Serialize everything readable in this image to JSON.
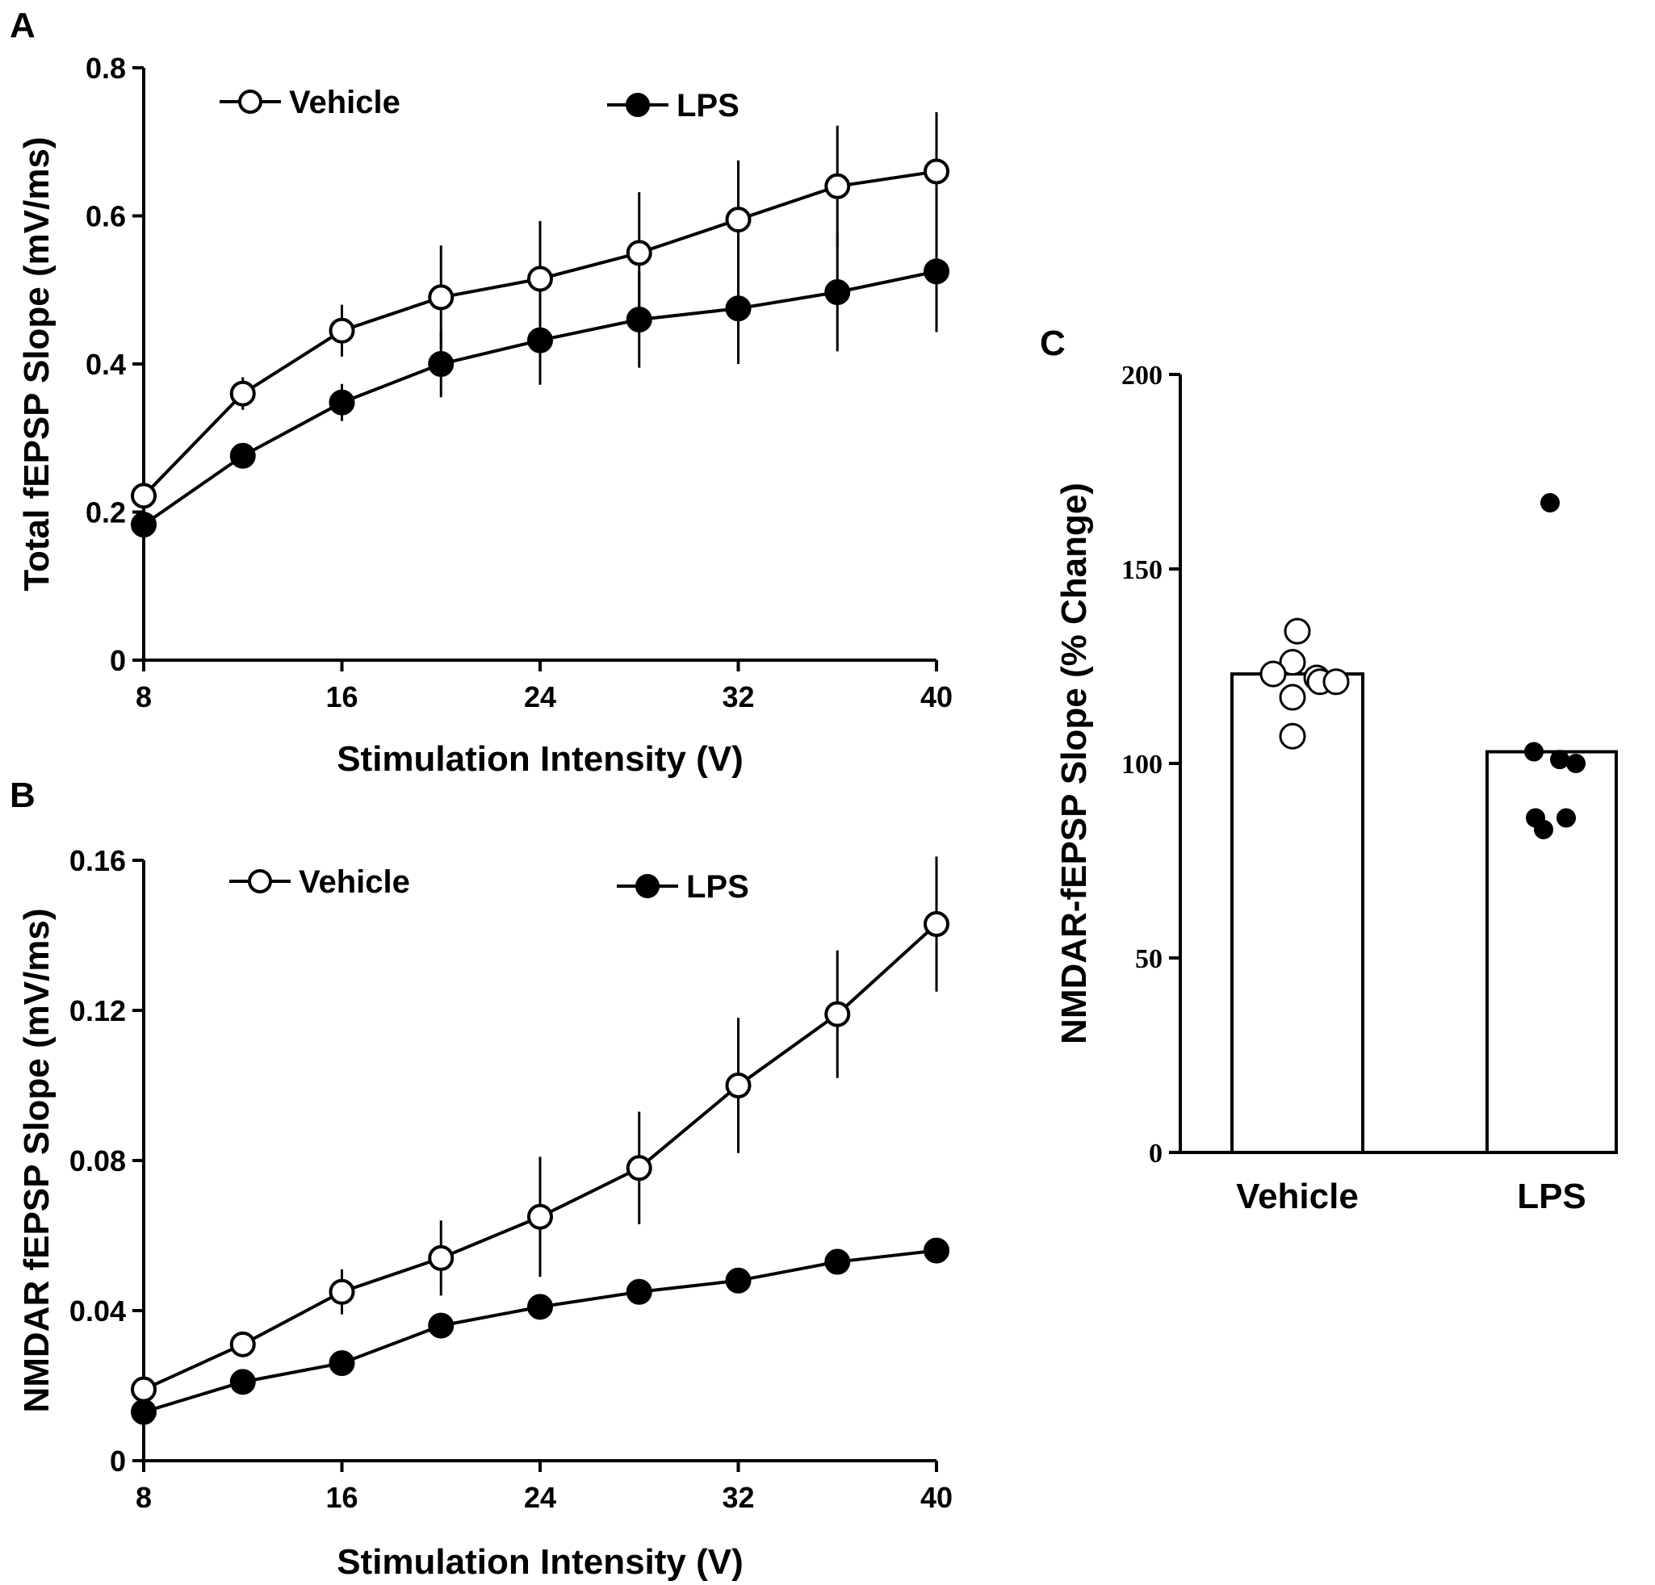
{
  "panels": {
    "A": "A",
    "B": "B",
    "C": "C"
  },
  "colors": {
    "ink": "#000000",
    "open_marker_fill": "#ffffff",
    "filled_marker_fill": "#000000",
    "bar_fill": "#ffffff"
  },
  "chart_data": [
    {
      "panel": "A",
      "type": "line",
      "xlabel": "Stimulation Intensity (V)",
      "ylabel": "Total fEPSP Slope (mV/ms)",
      "xlim": [
        8,
        40
      ],
      "ylim": [
        0,
        0.8
      ],
      "xticks": [
        8,
        16,
        24,
        32,
        40
      ],
      "yticks": [
        0,
        0.2,
        0.4,
        0.6,
        0.8
      ],
      "ytick_labels": [
        "0",
        "0.2",
        "0.4",
        "0.6",
        "0.8"
      ],
      "legend_placement": "top",
      "x": [
        8,
        12,
        16,
        20,
        24,
        28,
        32,
        36,
        40
      ],
      "series": [
        {
          "name": "Vehicle",
          "marker": "open-circle",
          "values": [
            0.222,
            0.36,
            0.445,
            0.49,
            0.515,
            0.55,
            0.595,
            0.64,
            0.66
          ],
          "errors": [
            0.01,
            0.022,
            0.035,
            0.07,
            0.078,
            0.082,
            0.08,
            0.082,
            0.08
          ]
        },
        {
          "name": "LPS",
          "marker": "filled-circle",
          "values": [
            0.183,
            0.276,
            0.348,
            0.4,
            0.432,
            0.46,
            0.475,
            0.497,
            0.525
          ],
          "errors": [
            0.005,
            0.012,
            0.025,
            0.045,
            0.06,
            0.065,
            0.075,
            0.08,
            0.082
          ]
        }
      ]
    },
    {
      "panel": "B",
      "type": "line",
      "xlabel": "Stimulation Intensity (V)",
      "ylabel": "NMDAR fEPSP Slope (mV/ms)",
      "xlim": [
        8,
        40
      ],
      "ylim": [
        0,
        0.16
      ],
      "xticks": [
        8,
        16,
        24,
        32,
        40
      ],
      "yticks": [
        0,
        0.04,
        0.08,
        0.12,
        0.16
      ],
      "ytick_labels": [
        "0",
        "0.04",
        "0.08",
        "0.12",
        "0.16"
      ],
      "legend_placement": "top",
      "x": [
        8,
        12,
        16,
        20,
        24,
        28,
        32,
        36,
        40
      ],
      "series": [
        {
          "name": "Vehicle",
          "marker": "open-circle",
          "values": [
            0.019,
            0.031,
            0.045,
            0.054,
            0.065,
            0.078,
            0.1,
            0.119,
            0.143
          ],
          "errors": [
            0.002,
            0.003,
            0.006,
            0.01,
            0.016,
            0.015,
            0.018,
            0.017,
            0.018
          ]
        },
        {
          "name": "LPS",
          "marker": "filled-circle",
          "values": [
            0.013,
            0.021,
            0.026,
            0.036,
            0.041,
            0.045,
            0.048,
            0.053,
            0.056
          ]
        }
      ]
    },
    {
      "panel": "C",
      "type": "bar",
      "ylabel": "NMDAR-fEPSP Slope (% Change)",
      "ylim": [
        0,
        200
      ],
      "yticks": [
        0,
        50,
        100,
        150,
        200
      ],
      "categories": [
        "Vehicle",
        "LPS"
      ],
      "values": [
        123,
        103
      ],
      "points": [
        [
          134,
          126,
          123,
          122,
          121,
          121,
          117,
          107
        ],
        [
          167,
          103,
          101,
          100,
          86,
          86,
          83
        ]
      ]
    }
  ]
}
